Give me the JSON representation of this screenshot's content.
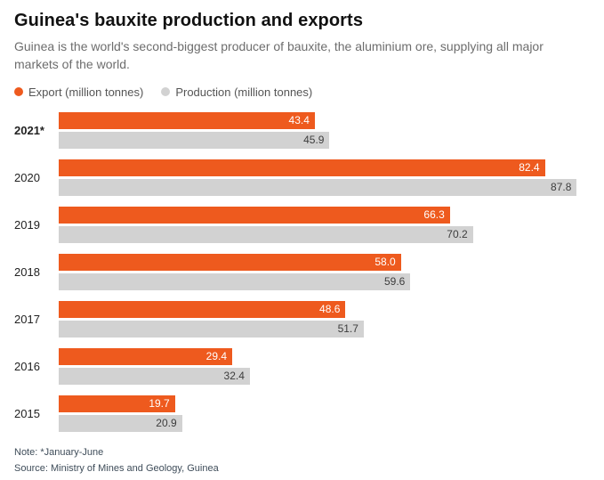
{
  "header": {
    "title": "Guinea's bauxite production and exports",
    "subtitle": "Guinea is the world's second-biggest producer of bauxite, the aluminium ore, supplying all major markets of the world."
  },
  "legend": [
    {
      "label": "Export (million tonnes)",
      "color": "#ee5a1e"
    },
    {
      "label": "Production (million tonnes)",
      "color": "#d2d2d2"
    }
  ],
  "chart_data": {
    "type": "bar",
    "orientation": "horizontal",
    "title": "Guinea's bauxite production and exports",
    "categories": [
      "2021*",
      "2020",
      "2019",
      "2018",
      "2017",
      "2016",
      "2015"
    ],
    "bold_categories": [
      "2021*"
    ],
    "xlim": [
      0,
      90
    ],
    "grid": false,
    "legend_position": "top",
    "series": [
      {
        "name": "Export (million tonnes)",
        "color": "#ee5a1e",
        "label_color": "#ffffff",
        "values": [
          43.4,
          82.4,
          66.3,
          58.0,
          48.6,
          29.4,
          19.7
        ],
        "labels": [
          "43.4",
          "82.4",
          "66.3",
          "58.0",
          "48.6",
          "29.4",
          "19.7"
        ]
      },
      {
        "name": "Production (million tonnes)",
        "color": "#d2d2d2",
        "label_color": "#3d3d3d",
        "values": [
          45.9,
          87.8,
          70.2,
          59.6,
          51.7,
          32.4,
          20.9
        ],
        "labels": [
          "45.9",
          "87.8",
          "70.2",
          "59.6",
          "51.7",
          "32.4",
          "20.9"
        ]
      }
    ]
  },
  "footer": {
    "note": "Note: *January-June",
    "source": "Source: Ministry of Mines and Geology, Guinea"
  }
}
